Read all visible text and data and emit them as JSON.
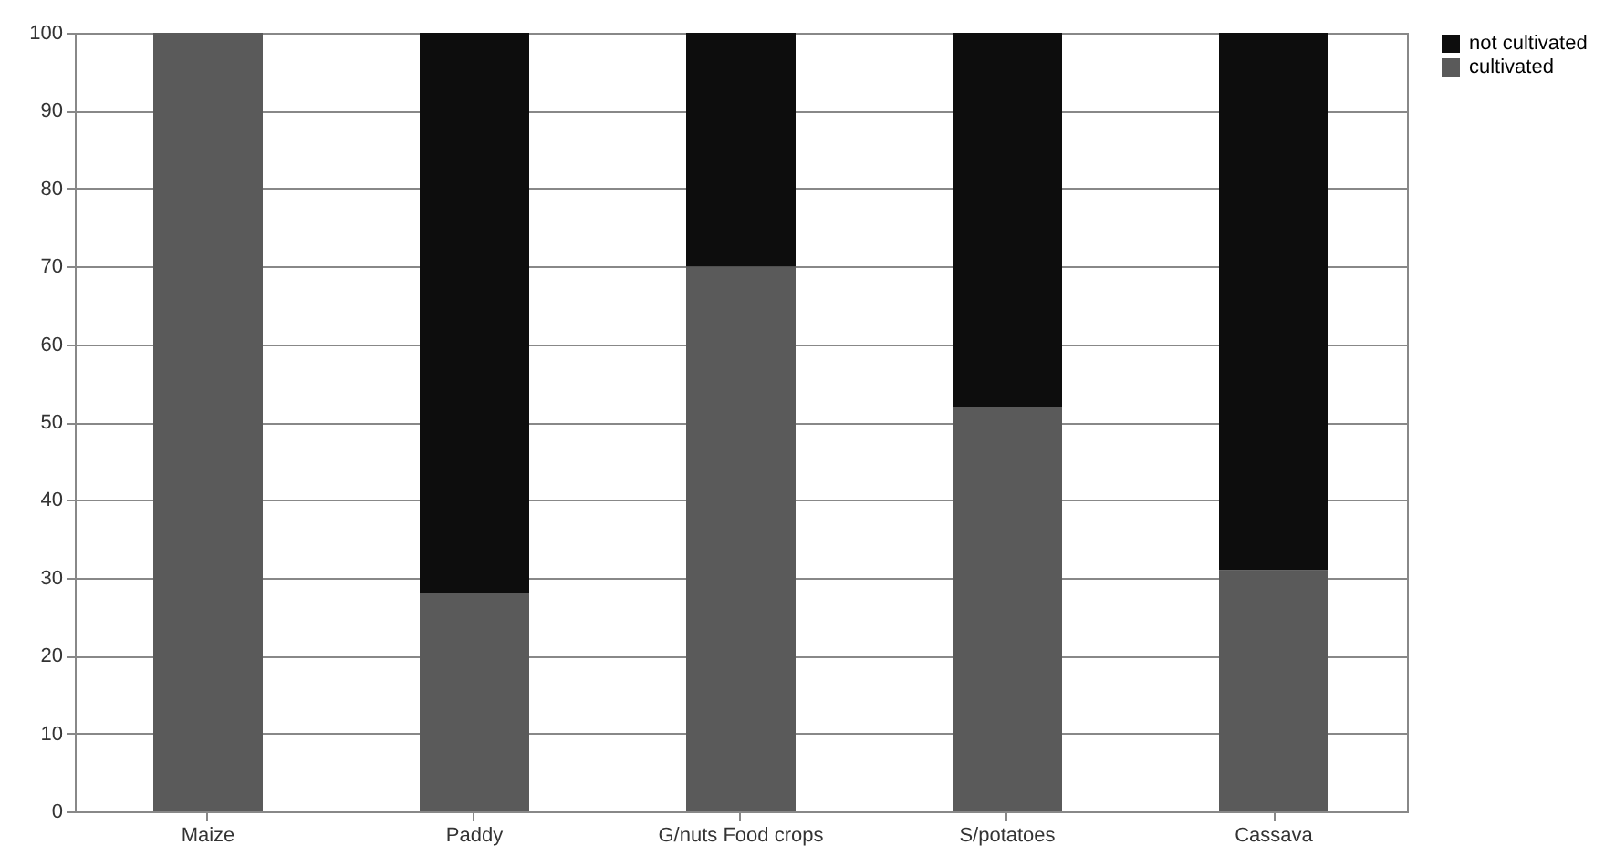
{
  "chart_data": {
    "type": "bar",
    "stacked": true,
    "categories": [
      "Maize",
      "Paddy",
      "G/nuts Food crops",
      "S/potatoes",
      "Cassava"
    ],
    "series": [
      {
        "name": "cultivated",
        "color": "#5a5a5a",
        "values": [
          100,
          28,
          70,
          52,
          31
        ]
      },
      {
        "name": "not cultivated",
        "color": "#0d0d0d",
        "values": [
          0,
          72,
          30,
          48,
          69
        ]
      }
    ],
    "ylim": [
      0,
      100
    ],
    "yticks": [
      0,
      10,
      20,
      30,
      40,
      50,
      60,
      70,
      80,
      90,
      100
    ],
    "grid": "y",
    "legend": "right"
  }
}
